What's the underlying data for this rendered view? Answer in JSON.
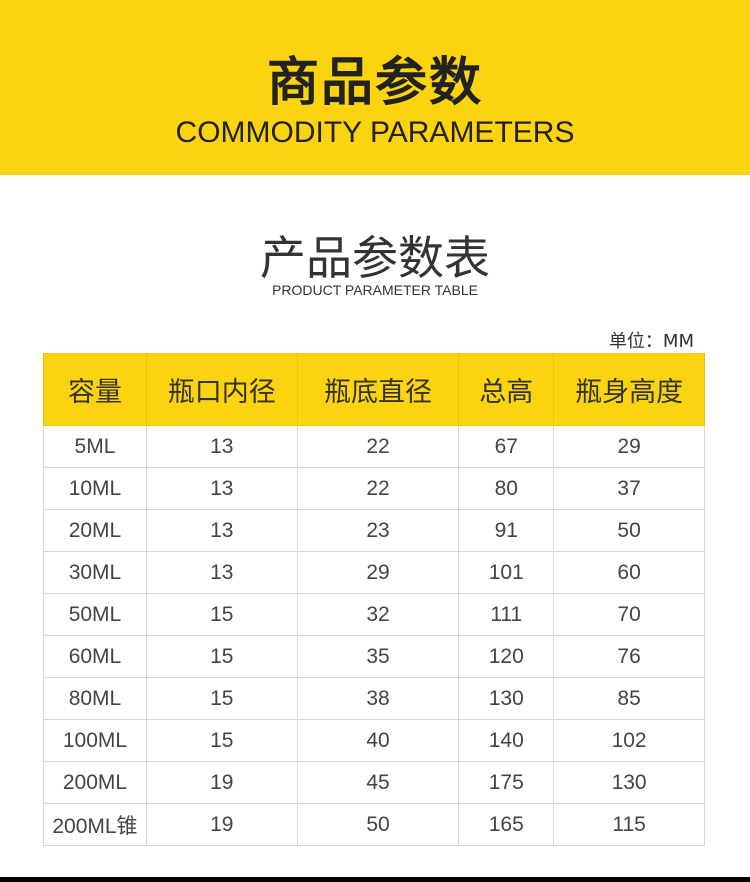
{
  "banner": {
    "title": "商品参数",
    "subtitle": "COMMODITY PARAMETERS",
    "color": "#fbd30f"
  },
  "section": {
    "title": "产品参数表",
    "subtitle": "PRODUCT PARAMETER TABLE",
    "unit": "单位：MM"
  },
  "table": {
    "headers": [
      "容量",
      "瓶口内径",
      "瓶底直径",
      "总高",
      "瓶身高度"
    ],
    "rows": [
      [
        "5ML",
        "13",
        "22",
        "67",
        "29"
      ],
      [
        "10ML",
        "13",
        "22",
        "80",
        "37"
      ],
      [
        "20ML",
        "13",
        "23",
        "91",
        "50"
      ],
      [
        "30ML",
        "13",
        "29",
        "101",
        "60"
      ],
      [
        "50ML",
        "15",
        "32",
        "111",
        "70"
      ],
      [
        "60ML",
        "15",
        "35",
        "120",
        "76"
      ],
      [
        "80ML",
        "15",
        "38",
        "130",
        "85"
      ],
      [
        "100ML",
        "15",
        "40",
        "140",
        "102"
      ],
      [
        "200ML",
        "19",
        "45",
        "175",
        "130"
      ],
      [
        "200ML锥",
        "19",
        "50",
        "165",
        "115"
      ]
    ]
  }
}
